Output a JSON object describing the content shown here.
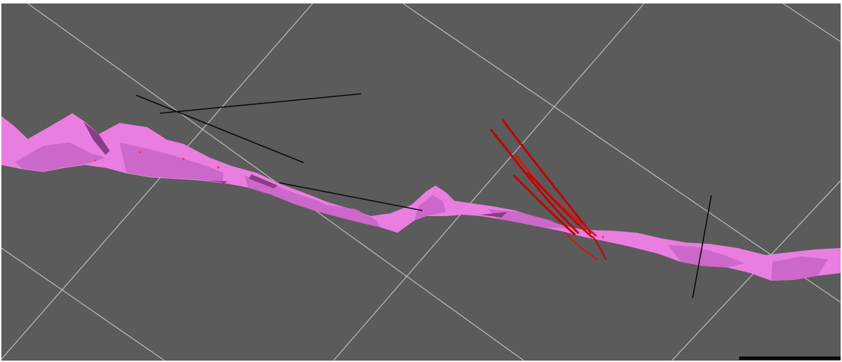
{
  "viewport": {
    "background_color": "#5b5b5b",
    "grid_color": "#c8c8c8"
  },
  "ribbon": {
    "fill_color": "#e97ee0",
    "shade_color": "#c966c6",
    "dark_color": "#8a3d86"
  },
  "strands": {
    "color": "#c20000",
    "count": 7
  },
  "section_lines": {
    "color": "#0a0a0a",
    "count": 5
  },
  "scale_bar": {
    "color": "#0a0a0a"
  }
}
